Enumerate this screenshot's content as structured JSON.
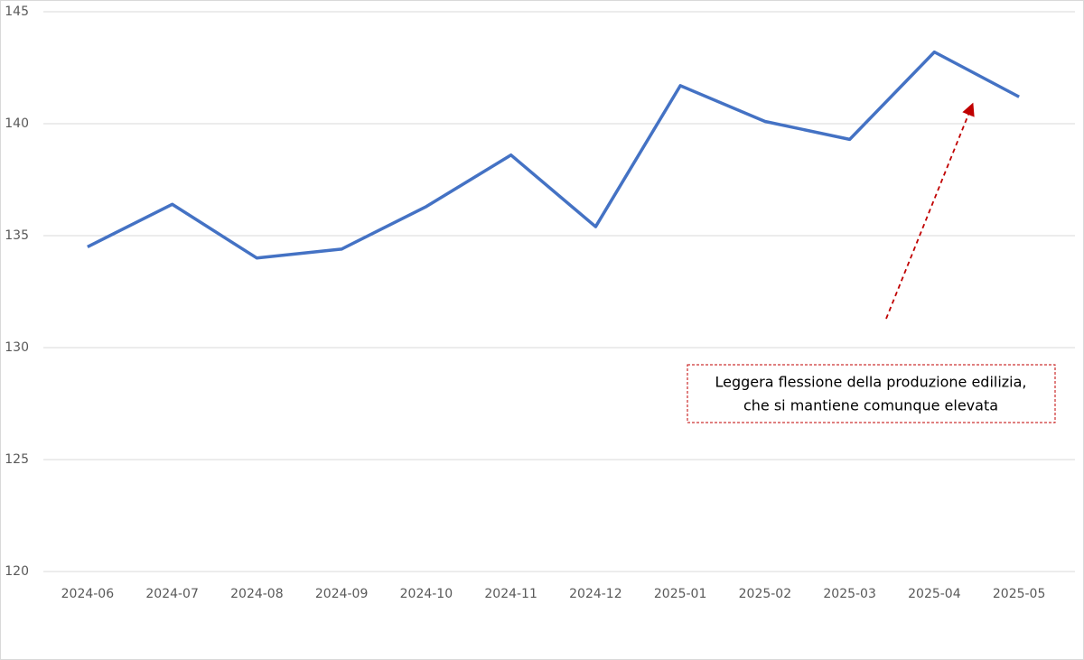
{
  "chart_data": {
    "type": "line",
    "categories": [
      "2024-06",
      "2024-07",
      "2024-08",
      "2024-09",
      "2024-10",
      "2024-11",
      "2024-12",
      "2025-01",
      "2025-02",
      "2025-03",
      "2025-04",
      "2025-05"
    ],
    "values": [
      134.5,
      136.4,
      134.0,
      134.4,
      136.3,
      138.6,
      135.4,
      141.7,
      140.1,
      139.3,
      143.2,
      141.2
    ],
    "color": "#4472c4",
    "ylim": [
      120,
      145
    ],
    "yticks": [
      120,
      125,
      130,
      135,
      140,
      145
    ],
    "grid": true,
    "annotation": [
      "Leggera flessione della produzione edilizia,",
      "che si mantiene comunque elevata"
    ],
    "annotation_color": "#c00000"
  }
}
